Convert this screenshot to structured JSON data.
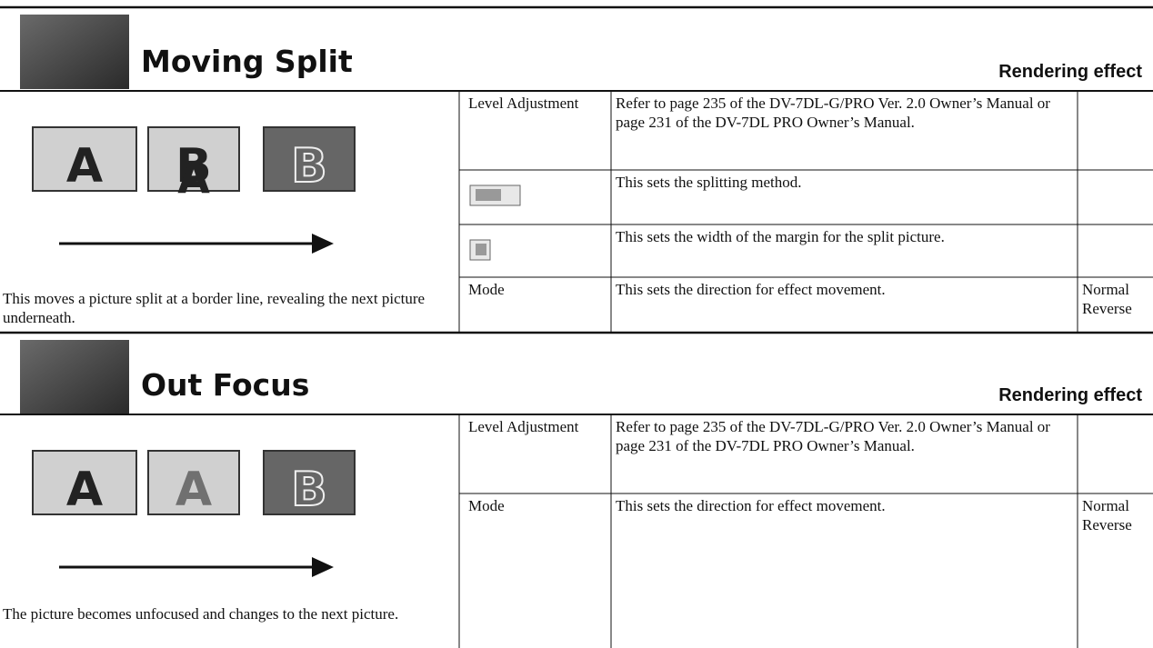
{
  "sections": [
    {
      "title": "Moving Split",
      "tag": "Rendering effect",
      "frames": [
        {
          "letters": [
            "A"
          ]
        },
        {
          "letters": [
            "B",
            "A"
          ]
        },
        {
          "letters": [
            "B"
          ]
        }
      ],
      "description": "This moves a picture split at a border line, revealing the next picture underneath.",
      "rows": [
        {
          "name": "Level Adjustment",
          "text": "Refer to page 235 of the DV-7DL-G/PRO Ver. 2.0 Owner’s Manual or page 231 of the DV-7DL PRO Owner’s Manual."
        },
        {
          "text": "This sets the splitting method."
        },
        {
          "text": "This sets the width of the margin for the split picture."
        },
        {
          "name": "Mode",
          "text": "This sets the direction for effect movement.",
          "options": [
            "Normal",
            "Reverse"
          ]
        }
      ]
    },
    {
      "title": "Out Focus",
      "tag": "Rendering effect",
      "frames": [
        {
          "letters": [
            "A"
          ]
        },
        {
          "letters": [
            "A"
          ]
        },
        {
          "letters": [
            "B"
          ]
        }
      ],
      "description": "The picture becomes unfocused and changes to the next picture.",
      "rows": [
        {
          "name": "Level Adjustment",
          "text": "Refer to page 235 of the DV-7DL-G/PRO Ver. 2.0 Owner’s Manual or page 231 of the DV-7DL PRO Owner’s Manual."
        },
        {
          "name": "Mode",
          "text": "This sets the direction for effect movement.",
          "options": [
            "Normal",
            "Reverse"
          ]
        }
      ]
    }
  ]
}
